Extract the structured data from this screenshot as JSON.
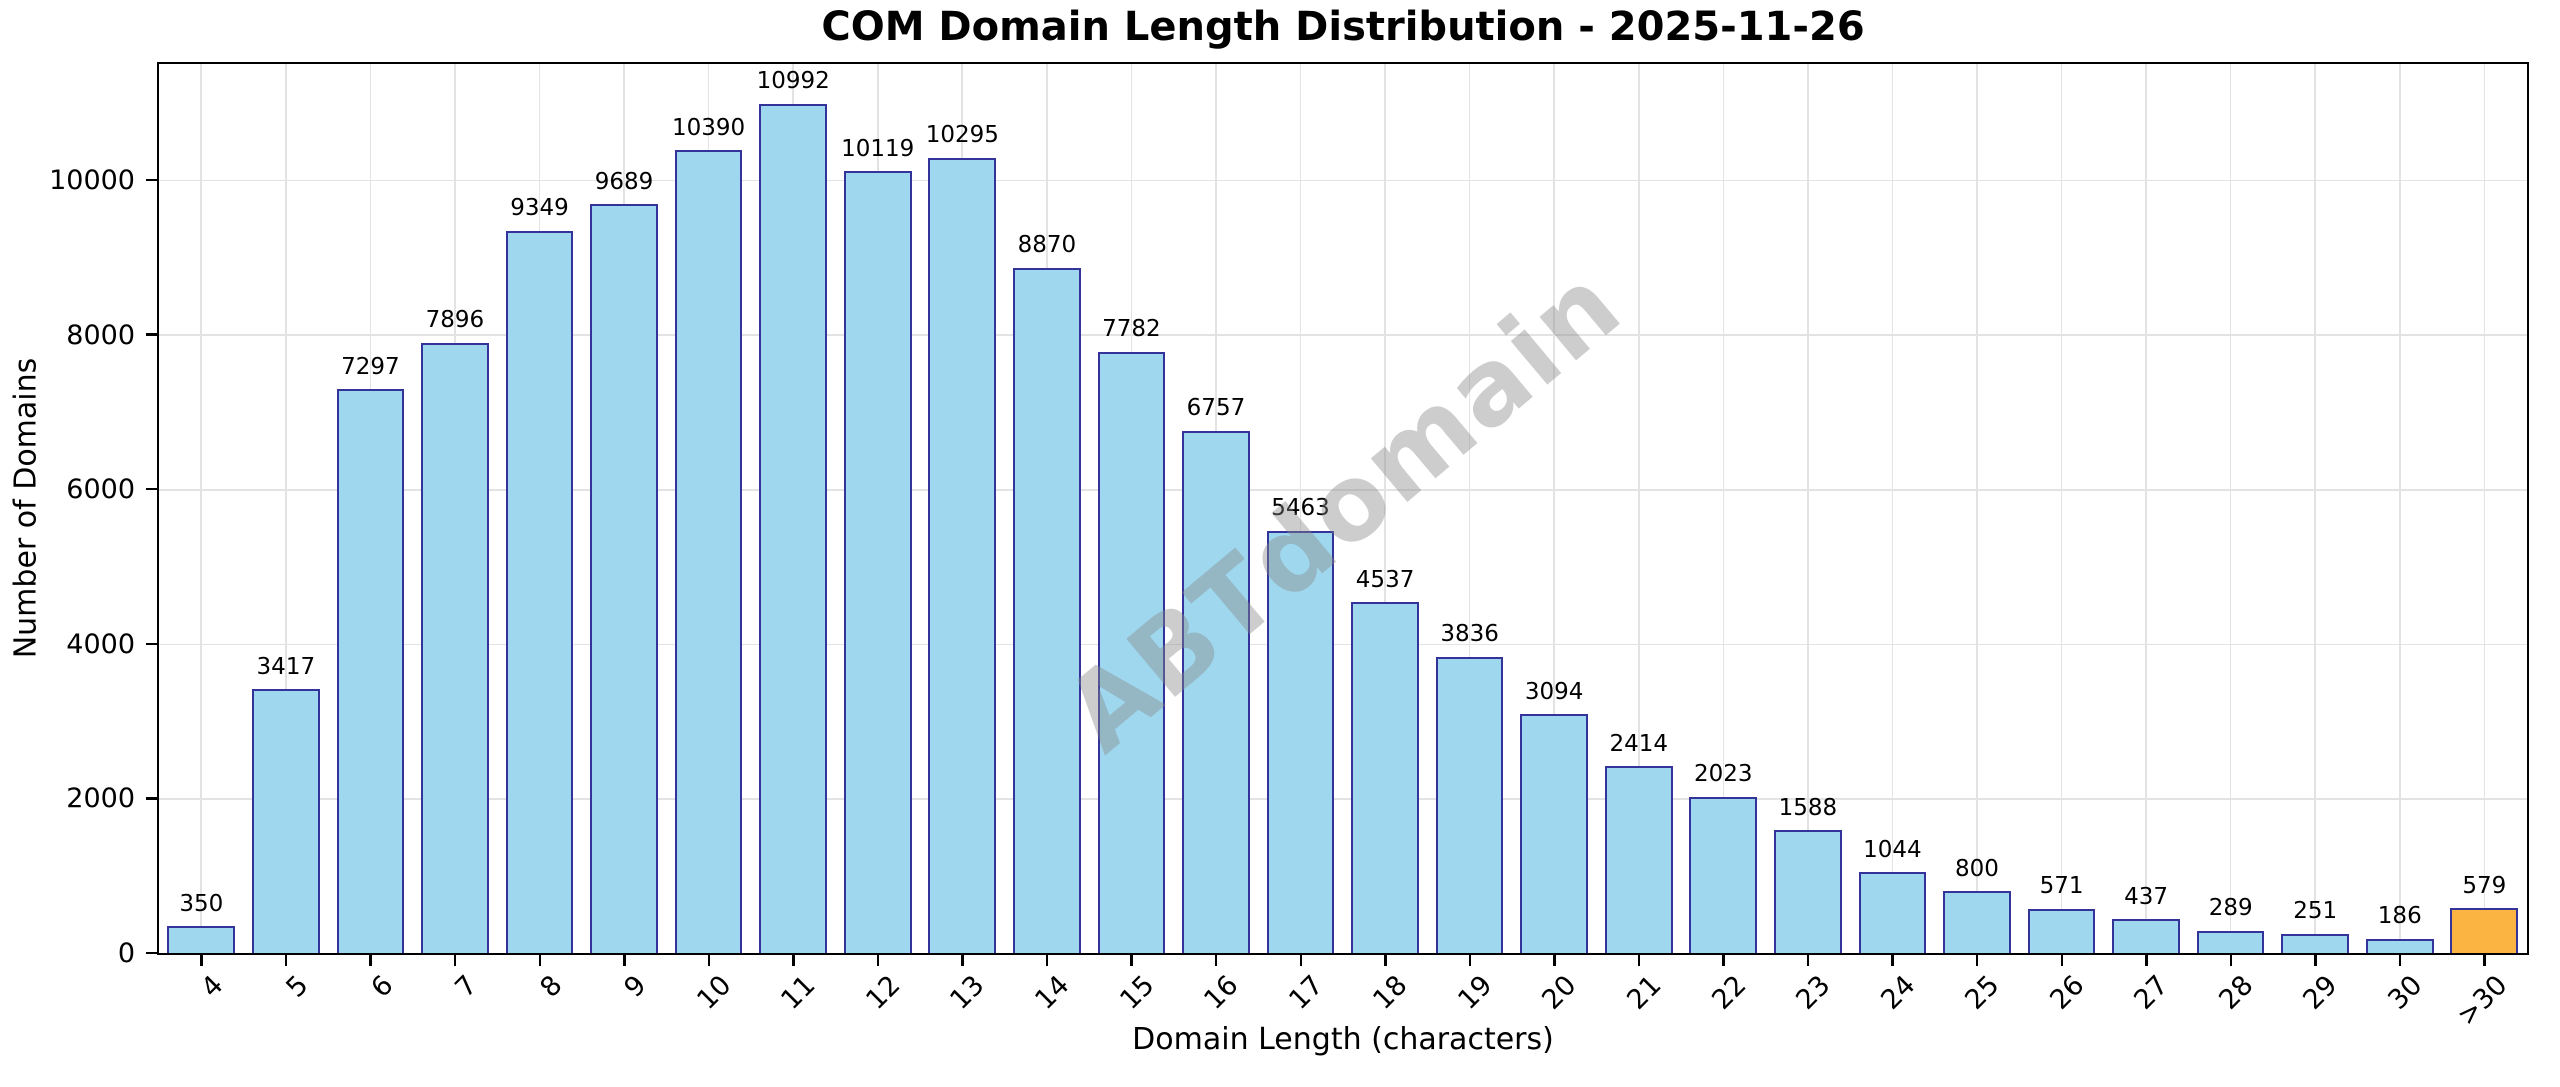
{
  "chart_data": {
    "type": "bar",
    "title": "COM Domain Length Distribution - 2025-11-26",
    "xlabel": "Domain Length (characters)",
    "ylabel": "Number of Domains",
    "categories": [
      "4",
      "5",
      "6",
      "7",
      "8",
      "9",
      "10",
      "11",
      "12",
      "13",
      "14",
      "15",
      "16",
      "17",
      "18",
      "19",
      "20",
      "21",
      "22",
      "23",
      "24",
      "25",
      "26",
      "27",
      "28",
      "29",
      "30",
      ">30"
    ],
    "values": [
      350,
      3417,
      7297,
      7896,
      9349,
      9689,
      10390,
      10992,
      10119,
      10295,
      8870,
      7782,
      6757,
      5463,
      4537,
      3836,
      3094,
      2414,
      2023,
      1588,
      1044,
      800,
      571,
      437,
      289,
      251,
      186,
      579
    ],
    "yticks": [
      0,
      2000,
      4000,
      6000,
      8000,
      10000
    ],
    "ylim": [
      0,
      11500
    ],
    "grid": true,
    "legend": "none",
    "bar_fill": "#9fd7ee",
    "bar_edge": "#333399",
    "highlight_index": 27,
    "highlight_fill": "#fbb342",
    "watermark": "ABTdomain"
  }
}
